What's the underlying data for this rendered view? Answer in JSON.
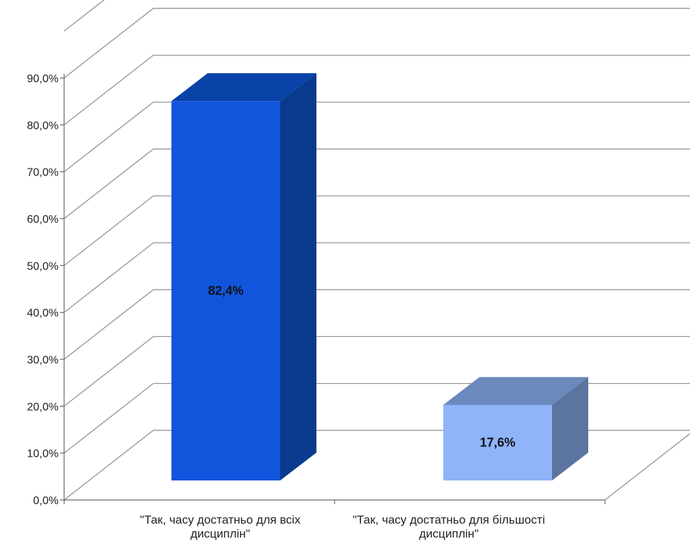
{
  "chart_data": {
    "type": "bar",
    "style": "3d-column",
    "categories": [
      "\"Так, часу достатньо для всіх дисциплін\"",
      "\"Так, часу достатньо для більшості дисциплін\""
    ],
    "category_lines": [
      [
        "\"Так, часу достатньо для всіх",
        "дисциплін\""
      ],
      [
        "\"Так, часу достатньо для більшості",
        "дисциплін\""
      ]
    ],
    "values": [
      82.4,
      17.6
    ],
    "data_labels": [
      "82,4%",
      "17,6%"
    ],
    "ylim": [
      0,
      90
    ],
    "y_ticks": [
      0,
      10,
      20,
      30,
      40,
      50,
      60,
      70,
      80,
      90
    ],
    "y_tick_labels": [
      "0,0%",
      "10,0%",
      "20,0%",
      "30,0%",
      "40,0%",
      "50,0%",
      "60,0%",
      "70,0%",
      "80,0%",
      "90,0%"
    ],
    "grid": true,
    "legend": "none",
    "colors": {
      "bar1_front": "#1155dd",
      "bar1_top": "#0a43a8",
      "bar1_side": "#0a3a8e",
      "bar2_front": "#8fb4f8",
      "bar2_top": "#6b89bd",
      "bar2_side": "#5c74a0",
      "grid": "#8a8a8a",
      "axis": "#666666"
    }
  }
}
